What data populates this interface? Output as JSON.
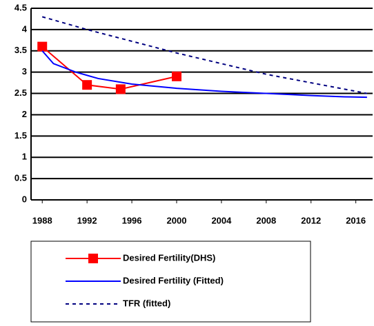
{
  "chart_data": {
    "type": "line",
    "xlim": [
      1987,
      2017.5
    ],
    "xticks": [
      1988,
      1992,
      1996,
      2000,
      2004,
      2008,
      2012,
      2016
    ],
    "ylim": [
      0,
      4.5
    ],
    "yticks": [
      0,
      0.5,
      1,
      1.5,
      2,
      2.5,
      3,
      3.5,
      4,
      4.5
    ],
    "grid": true,
    "series": [
      {
        "name": "Desired Fertility(DHS)",
        "color": "#ff0000",
        "marker": "square",
        "dash": "solid",
        "x": [
          1988,
          1992,
          1995,
          2000
        ],
        "values": [
          3.6,
          2.7,
          2.6,
          2.9
        ]
      },
      {
        "name": "Desired Fertility (Fitted)",
        "color": "#0000ff",
        "marker": "none",
        "dash": "solid",
        "x": [
          1988,
          1989,
          1991,
          1993,
          1996,
          2000,
          2004,
          2008,
          2012,
          2015,
          2017
        ],
        "values": [
          3.5,
          3.2,
          3.0,
          2.85,
          2.72,
          2.62,
          2.55,
          2.5,
          2.45,
          2.42,
          2.41
        ]
      },
      {
        "name": "TFR (fitted)",
        "color": "#000080",
        "marker": "none",
        "dash": "dashed",
        "x": [
          1988,
          1992,
          2000,
          2008,
          2017
        ],
        "values": [
          4.3,
          4.0,
          3.45,
          2.95,
          2.5
        ]
      }
    ]
  }
}
